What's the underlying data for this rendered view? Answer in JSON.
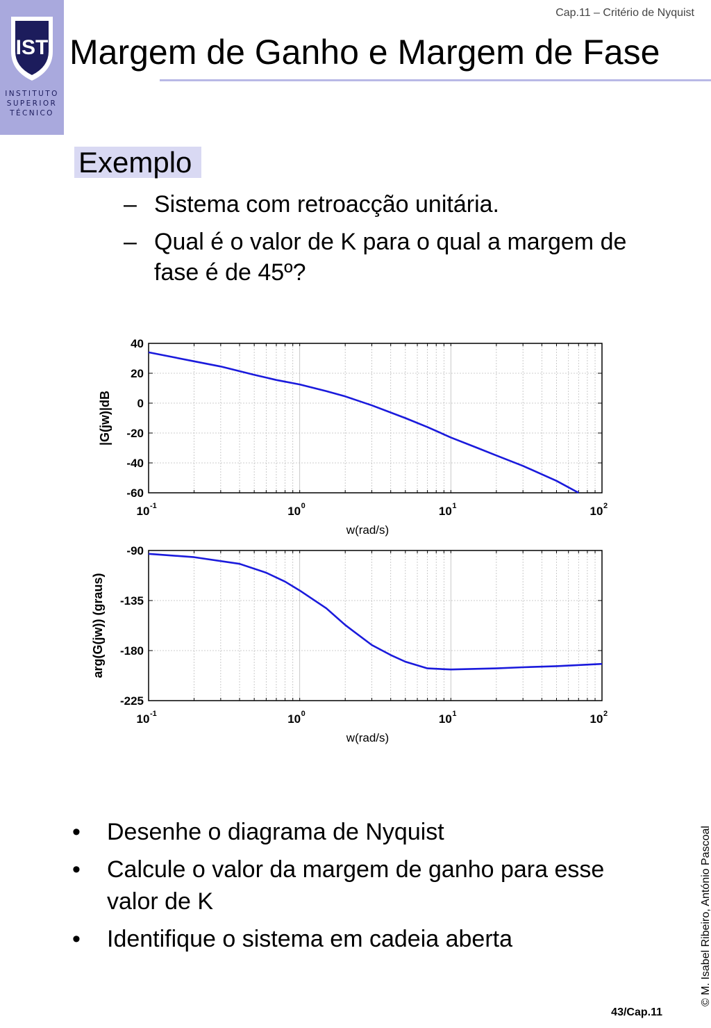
{
  "logo": {
    "shield_text": "IST",
    "lines": [
      "INSTITUTO",
      "SUPERIOR",
      "TÉCNICO"
    ]
  },
  "header": {
    "chapter": "Cap.11 – Critério de Nyquist",
    "title": "Margem de Ganho e Margem de Fase"
  },
  "section": {
    "label": "Exemplo",
    "items": [
      {
        "dash": "–",
        "text": "Sistema com retroacção unitária."
      },
      {
        "dash": "–",
        "text": "Qual é o valor de K para o qual a margem de fase é de 45º?"
      }
    ]
  },
  "chart_data": [
    {
      "type": "line",
      "title": "",
      "xlabel": "w(rad/s)",
      "ylabel": "|G(jw)|dB",
      "xscale": "log",
      "xlim": [
        0.1,
        100
      ],
      "ylim": [
        -60,
        40
      ],
      "xticks": [
        0.1,
        1,
        10,
        100
      ],
      "xtick_bases": [
        "10",
        "10",
        "10",
        "10"
      ],
      "xtick_exps": [
        "-1",
        "0",
        "1",
        "2"
      ],
      "yticks": [
        40,
        20,
        0,
        -20,
        -40,
        -60
      ],
      "ytick_labels": [
        "40",
        "20",
        "0",
        "-20",
        "-40",
        "-60"
      ],
      "grid": true,
      "color": "#1a1adc",
      "series": [
        {
          "x": [
            0.1,
            0.2,
            0.3,
            0.5,
            0.7,
            1,
            1.5,
            2,
            3,
            5,
            7,
            10,
            15,
            20,
            30,
            50,
            70
          ],
          "y": [
            34,
            28,
            24.5,
            19,
            15.5,
            12.5,
            8,
            4.5,
            -1.5,
            -10,
            -16,
            -23,
            -30,
            -35,
            -42,
            -52,
            -60
          ]
        }
      ]
    },
    {
      "type": "line",
      "title": "",
      "xlabel": "w(rad/s)",
      "ylabel": "arg(G(jw)) (graus)",
      "xscale": "log",
      "xlim": [
        0.1,
        100
      ],
      "ylim": [
        -225,
        -90
      ],
      "xticks": [
        0.1,
        1,
        10,
        100
      ],
      "xtick_bases": [
        "10",
        "10",
        "10",
        "10"
      ],
      "xtick_exps": [
        "-1",
        "0",
        "1",
        "2"
      ],
      "yticks": [
        -90,
        -135,
        -180,
        -225
      ],
      "ytick_labels": [
        "-90",
        "-135",
        "-180",
        "-225"
      ],
      "grid": true,
      "color": "#1a1adc",
      "series": [
        {
          "x": [
            0.1,
            0.2,
            0.4,
            0.6,
            0.8,
            1,
            1.5,
            2,
            3,
            4,
            5,
            7,
            10,
            20,
            30,
            50,
            100
          ],
          "y": [
            -93,
            -96,
            -102,
            -110,
            -118,
            -126,
            -142,
            -157,
            -175,
            -184,
            -190,
            -196,
            -197,
            -196,
            -195,
            -194,
            -192
          ]
        }
      ]
    }
  ],
  "tasks": [
    {
      "bullet": "•",
      "text": "Desenhe o diagrama de Nyquist"
    },
    {
      "bullet": "•",
      "text": "Calcule o valor da margem de ganho para esse valor de K"
    },
    {
      "bullet": "•",
      "text": "Identifique o sistema em cadeia aberta"
    }
  ],
  "footer": {
    "copyright": "© M. Isabel Ribeiro, António Pascoal",
    "page": "43/Cap.11"
  }
}
